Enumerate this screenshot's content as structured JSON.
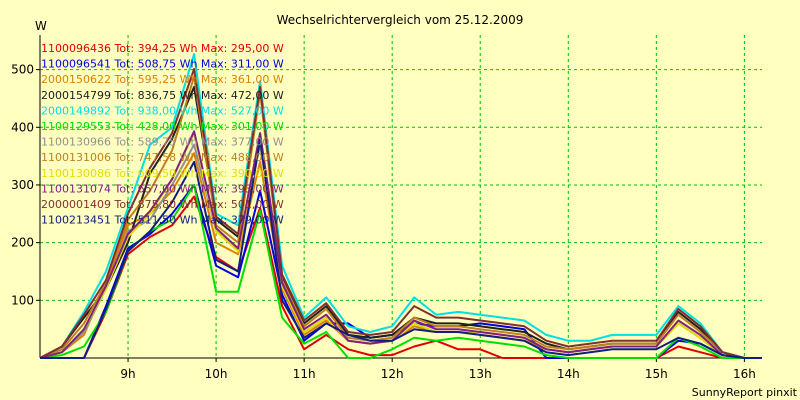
{
  "chart_data": {
    "type": "line",
    "title": "Wechselrichtervergleich vom 25.12.2009",
    "ylabel": "W",
    "xlabel": "",
    "ylim": [
      0,
      560
    ],
    "xlim": [
      8.0,
      16.2
    ],
    "grid": true,
    "legend_position": "top-left",
    "footer": "SunnyReport pinxit",
    "y_ticks": [
      {
        "value": 100,
        "label": "100"
      },
      {
        "value": 200,
        "label": "200"
      },
      {
        "value": 300,
        "label": "300"
      },
      {
        "value": 400,
        "label": "400"
      },
      {
        "value": 500,
        "label": "500"
      }
    ],
    "x_ticks": [
      {
        "value": 9,
        "label": "9h"
      },
      {
        "value": 10,
        "label": "10h"
      },
      {
        "value": 11,
        "label": "11h"
      },
      {
        "value": 12,
        "label": "12h"
      },
      {
        "value": 13,
        "label": "13h"
      },
      {
        "value": 14,
        "label": "14h"
      },
      {
        "value": 15,
        "label": "15h"
      },
      {
        "value": 16,
        "label": "16h"
      }
    ],
    "x": [
      8.0,
      8.25,
      8.5,
      8.75,
      9.0,
      9.25,
      9.5,
      9.75,
      10.0,
      10.25,
      10.5,
      10.75,
      11.0,
      11.25,
      11.5,
      11.75,
      12.0,
      12.25,
      12.5,
      12.75,
      13.0,
      13.25,
      13.5,
      13.75,
      14.0,
      14.25,
      14.5,
      14.75,
      15.0,
      15.25,
      15.5,
      15.75,
      16.0,
      16.2
    ],
    "series": [
      {
        "name": "1100096436",
        "label": "1100096436 Tot: 394,25 Wh Max: 295,00 W",
        "color": "#e00000",
        "values": [
          0,
          0,
          0,
          80,
          180,
          210,
          230,
          280,
          175,
          150,
          260,
          90,
          15,
          40,
          15,
          5,
          5,
          20,
          30,
          15,
          15,
          0,
          0,
          0,
          0,
          0,
          0,
          0,
          0,
          20,
          10,
          0,
          0,
          0
        ]
      },
      {
        "name": "1100096541",
        "label": "1100096541 Tot: 508,75 Wh Max: 311,00 W",
        "color": "#0000e0",
        "values": [
          0,
          0,
          0,
          90,
          190,
          215,
          250,
          300,
          160,
          140,
          290,
          110,
          30,
          60,
          60,
          35,
          40,
          60,
          55,
          55,
          60,
          55,
          50,
          0,
          0,
          0,
          0,
          0,
          0,
          30,
          25,
          5,
          0,
          0
        ]
      },
      {
        "name": "2000150622",
        "label": "2000150622 Tot: 595,25 Wh Max: 361,00 W",
        "color": "#e08000",
        "values": [
          0,
          10,
          40,
          130,
          230,
          250,
          290,
          355,
          200,
          180,
          340,
          120,
          40,
          65,
          30,
          25,
          30,
          55,
          45,
          45,
          40,
          35,
          30,
          15,
          10,
          15,
          20,
          20,
          20,
          60,
          35,
          5,
          0,
          0
        ]
      },
      {
        "name": "2000154799",
        "label": "2000154799 Tot: 836,75 Wh Max: 472,00 W",
        "color": "#202020",
        "values": [
          0,
          20,
          70,
          120,
          200,
          320,
          380,
          470,
          240,
          210,
          465,
          140,
          60,
          90,
          40,
          35,
          40,
          70,
          60,
          60,
          55,
          50,
          45,
          25,
          15,
          20,
          25,
          25,
          25,
          80,
          50,
          10,
          0,
          0
        ]
      },
      {
        "name": "2000149892",
        "label": "2000149892 Tot: 938,00 Wh Max: 527,00 W",
        "color": "#00e0e0",
        "values": [
          0,
          20,
          80,
          150,
          260,
          370,
          400,
          527,
          250,
          230,
          480,
          160,
          70,
          105,
          55,
          45,
          55,
          105,
          75,
          80,
          75,
          70,
          65,
          40,
          30,
          30,
          40,
          40,
          40,
          90,
          60,
          10,
          0,
          0
        ]
      },
      {
        "name": "1100129553",
        "label": "1100129553 Tot: 428,00 Wh Max: 301,00 W",
        "color": "#00e000",
        "values": [
          0,
          5,
          20,
          80,
          185,
          220,
          240,
          300,
          115,
          115,
          255,
          70,
          25,
          45,
          0,
          0,
          15,
          35,
          30,
          35,
          30,
          25,
          20,
          5,
          0,
          0,
          0,
          0,
          0,
          35,
          20,
          0,
          0,
          0
        ]
      },
      {
        "name": "1100130966",
        "label": "1100130966 Tot: 589,75 Wh Max: 377,00 W",
        "color": "#909090",
        "values": [
          0,
          10,
          45,
          120,
          220,
          240,
          300,
          370,
          220,
          190,
          370,
          125,
          45,
          70,
          30,
          25,
          30,
          60,
          45,
          45,
          45,
          40,
          35,
          15,
          10,
          15,
          20,
          20,
          20,
          60,
          35,
          5,
          0,
          0
        ]
      },
      {
        "name": "1100131006",
        "label": "1100131006 Tot: 747,58 Wh Max: 488,00 W",
        "color": "#c08020",
        "values": [
          0,
          15,
          60,
          130,
          240,
          290,
          360,
          488,
          230,
          200,
          460,
          135,
          55,
          85,
          35,
          30,
          35,
          70,
          55,
          55,
          50,
          45,
          40,
          20,
          15,
          20,
          25,
          25,
          25,
          75,
          45,
          10,
          0,
          0
        ]
      },
      {
        "name": "1100130086",
        "label": "1100130086 Tot: 609,50 Wh Max: 390,00 W",
        "color": "#e0e000",
        "values": [
          0,
          10,
          50,
          120,
          210,
          250,
          310,
          390,
          220,
          185,
          390,
          125,
          45,
          70,
          30,
          25,
          30,
          60,
          45,
          45,
          45,
          40,
          35,
          15,
          10,
          15,
          20,
          20,
          20,
          60,
          35,
          5,
          0,
          0
        ]
      },
      {
        "name": "1100131074",
        "label": "1100131074 Tot: 657,00 Wh Max: 393,00 W",
        "color": "#802080",
        "values": [
          0,
          10,
          50,
          125,
          215,
          255,
          310,
          393,
          225,
          190,
          390,
          130,
          50,
          75,
          30,
          25,
          30,
          65,
          50,
          50,
          45,
          40,
          35,
          15,
          10,
          15,
          20,
          20,
          20,
          65,
          40,
          5,
          0,
          0
        ]
      },
      {
        "name": "2000001409",
        "label": "2000001409 Tot: 875,80 Wh Max: 501,00 W",
        "color": "#803030",
        "values": [
          0,
          20,
          75,
          135,
          250,
          330,
          390,
          501,
          245,
          215,
          470,
          145,
          65,
          95,
          45,
          40,
          45,
          90,
          70,
          70,
          65,
          60,
          55,
          30,
          20,
          25,
          30,
          30,
          30,
          85,
          55,
          10,
          0,
          0
        ]
      },
      {
        "name": "1100213451",
        "label": "1100213451 Tot: 511,50 Wh Max: 379,00 W",
        "color": "#102080",
        "values": [
          0,
          0,
          0,
          85,
          185,
          220,
          270,
          340,
          170,
          150,
          379,
          100,
          35,
          60,
          40,
          30,
          30,
          50,
          45,
          45,
          40,
          35,
          30,
          10,
          5,
          10,
          15,
          15,
          15,
          35,
          25,
          5,
          0,
          0
        ]
      }
    ]
  }
}
